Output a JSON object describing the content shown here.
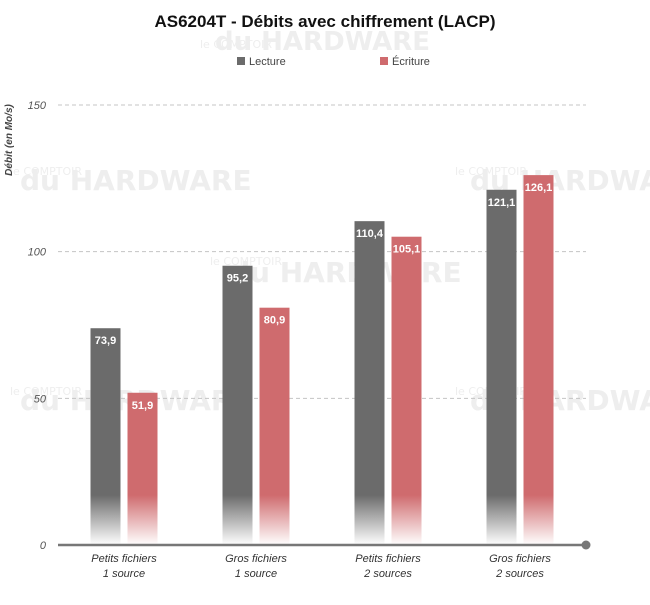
{
  "chart_data": {
    "type": "bar",
    "title": "AS6204T - Débits avec chiffrement (LACP)",
    "ylabel": "Débit (en Mo/s)",
    "xlabel": "",
    "ylim": [
      0,
      150
    ],
    "yticks": [
      0,
      50,
      100,
      150
    ],
    "ytick_labels": [
      "0",
      "50",
      "100",
      "150"
    ],
    "grid": true,
    "legend_position": "top-center",
    "categories": [
      [
        "Petits fichiers",
        "1 source"
      ],
      [
        "Gros fichiers",
        "1 source"
      ],
      [
        "Petits fichiers",
        "2 sources"
      ],
      [
        "Gros fichiers",
        "2 sources"
      ]
    ],
    "series": [
      {
        "name": "Lecture",
        "color": "#6b6b6b",
        "values": [
          73.9,
          95.2,
          110.4,
          121.1
        ],
        "labels": [
          "73,9",
          "95,2",
          "110,4",
          "121,1"
        ]
      },
      {
        "name": "Écriture",
        "color": "#cf6b6e",
        "values": [
          51.9,
          80.9,
          105.1,
          126.1
        ],
        "labels": [
          "51,9",
          "80,9",
          "105,1",
          "126,1"
        ]
      }
    ]
  },
  "watermark": {
    "line1": "le COMPTOIR",
    "line2": "du HARDWARE"
  }
}
